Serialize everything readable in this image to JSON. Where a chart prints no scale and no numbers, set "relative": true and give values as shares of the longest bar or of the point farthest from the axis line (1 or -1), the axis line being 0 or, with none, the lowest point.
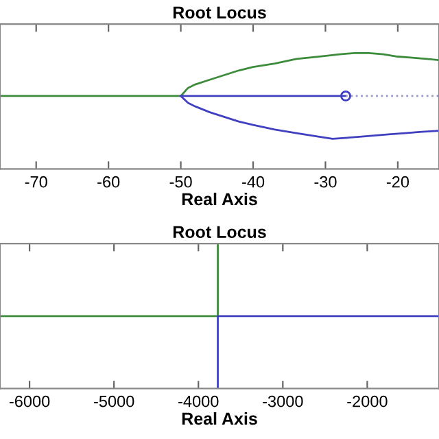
{
  "chart_data": [
    {
      "type": "line",
      "title": "Root Locus",
      "xlabel": "Real Axis",
      "relative": true,
      "tick_labels": "x",
      "grid": false,
      "legend": false,
      "xlim": [
        -75,
        -14.3
      ],
      "xticks": [
        -70,
        -60,
        -50,
        -40,
        -30,
        -20
      ],
      "series": [
        {
          "color": "#3c8c3c",
          "x": [
            -75,
            -60,
            -50,
            -49,
            -48,
            -46,
            -44,
            -42,
            -40,
            -37,
            -34,
            -31,
            -28,
            -26,
            -24,
            -22,
            -20,
            -18,
            -16,
            -14.3
          ],
          "values": [
            0.63,
            0.63,
            0.63,
            0.7,
            0.73,
            0.77,
            0.81,
            0.85,
            0.88,
            0.91,
            0.95,
            0.97,
            0.99,
            1.0,
            1.0,
            0.99,
            0.97,
            0.96,
            0.95,
            0.94
          ]
        },
        {
          "color": "#4040c0",
          "x": [
            -50,
            -40,
            -27.2
          ],
          "values": [
            0.63,
            0.63,
            0.63
          ]
        },
        {
          "color": "#4040c0",
          "x": [
            -50,
            -49,
            -48,
            -46,
            -44,
            -42,
            -40,
            -37,
            -34,
            -31,
            -29,
            -27,
            -25,
            -23,
            -21,
            -19,
            -17,
            -14.3
          ],
          "values": [
            0.63,
            0.57,
            0.54,
            0.49,
            0.45,
            0.41,
            0.38,
            0.34,
            0.31,
            0.28,
            0.26,
            0.27,
            0.28,
            0.29,
            0.3,
            0.31,
            0.32,
            0.33
          ]
        },
        {
          "color": "#9999cc",
          "line_style": "dotted",
          "x": [
            -27.2,
            -14.3
          ],
          "values": [
            0.63,
            0.63
          ]
        },
        {
          "type": "scatter",
          "marker": "circle",
          "color": "#4040c0",
          "x": [
            -27.2
          ],
          "values": [
            0.63
          ]
        }
      ]
    },
    {
      "type": "line",
      "title": "Root Locus",
      "xlabel": "Real Axis",
      "relative": true,
      "tick_labels": "x",
      "grid": false,
      "legend": false,
      "xlim": [
        -6350,
        -1150
      ],
      "xticks": [
        -6000,
        -5000,
        -4000,
        -3000,
        -2000
      ],
      "series": [
        {
          "color": "#3c8c3c",
          "x": [
            -6350,
            -3770,
            -3770
          ],
          "values": [
            0.5,
            0.5,
            1
          ]
        },
        {
          "color": "#4040c0",
          "x": [
            -1150,
            -3770,
            -3770
          ],
          "values": [
            0.5,
            0.5,
            0
          ]
        }
      ]
    }
  ]
}
